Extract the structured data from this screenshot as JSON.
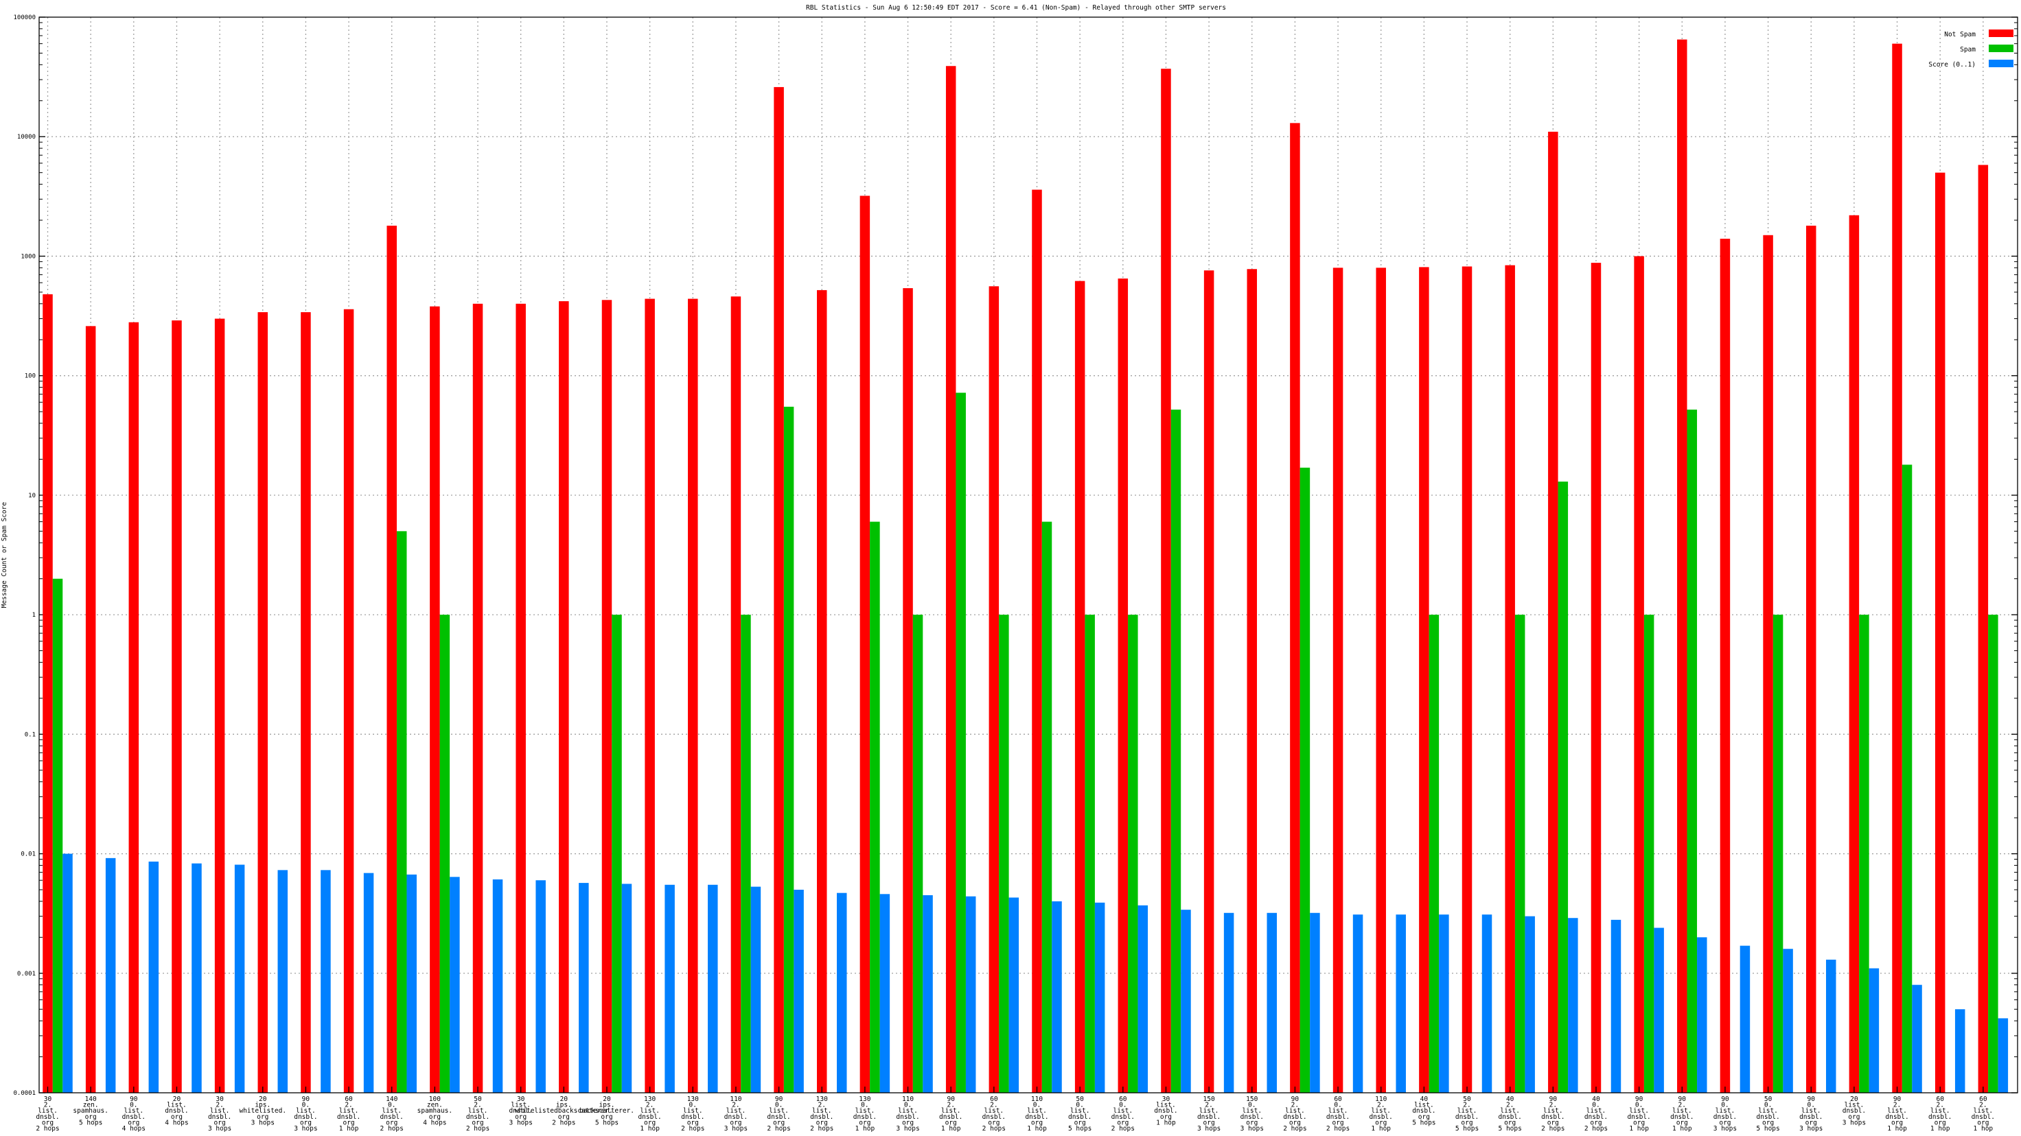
{
  "chart_data": {
    "type": "bar",
    "title": "RBL Statistics - Sun Aug  6 12:50:49 EDT 2017 - Score = 6.41 (Non-Spam) - Relayed through other SMTP servers",
    "ylabel": "Message Count or Spam Score",
    "xlabel": "",
    "yscale": "log",
    "ylim": [
      0.0001,
      100000
    ],
    "y_ticks": [
      "0.0001",
      "0.001",
      "0.01",
      "0.1",
      "1",
      "10",
      "100",
      "1000",
      "10000",
      "100000"
    ],
    "grid": true,
    "legend_position": "top-right",
    "categories": [
      [
        "30",
        "2.",
        "list.",
        "dnsbl.",
        "org",
        "2 hops"
      ],
      [
        "140",
        "zen.",
        "spamhaus.",
        "org",
        "5 hops"
      ],
      [
        "90",
        "0.",
        "list.",
        "dnsbl.",
        "org",
        "4 hops"
      ],
      [
        "20",
        "list.",
        "dnsbl.",
        "org",
        "4 hops"
      ],
      [
        "30",
        "2.",
        "list.",
        "dnsbl.",
        "org",
        "3 hops"
      ],
      [
        "20",
        "ips.",
        "whitelisted.",
        "org",
        "3 hops"
      ],
      [
        "90",
        "0.",
        "list.",
        "dnsbl.",
        "org",
        "3 hops"
      ],
      [
        "60",
        "2.",
        "list.",
        "dnsbl.",
        "org",
        "1 hop"
      ],
      [
        "140",
        "0.",
        "list.",
        "dnsbl.",
        "org",
        "2 hops"
      ],
      [
        "100",
        "zen.",
        "spamhaus.",
        "org",
        "4 hops"
      ],
      [
        "50",
        "2.",
        "list.",
        "dnsbl.",
        "org",
        "2 hops"
      ],
      [
        "30",
        "list.",
        "dnsbl.",
        "org",
        "3 hops"
      ],
      [
        "20",
        "ips.",
        "whitelistedbackscatterer.",
        "org",
        "2 hops"
      ],
      [
        "20",
        "ips.",
        "backscatterer.",
        "org",
        "5 hops"
      ],
      [
        "130",
        "2.",
        "list.",
        "dnsbl.",
        "org",
        "1 hop"
      ],
      [
        "130",
        "0.",
        "list.",
        "dnsbl.",
        "org",
        "2 hops"
      ],
      [
        "110",
        "2.",
        "list.",
        "dnsbl.",
        "org",
        "3 hops"
      ],
      [
        "90",
        "0.",
        "list.",
        "dnsbl.",
        "org",
        "2 hops"
      ],
      [
        "130",
        "2.",
        "list.",
        "dnsbl.",
        "org",
        "2 hops"
      ],
      [
        "130",
        "0.",
        "list.",
        "dnsbl.",
        "org",
        "1 hop"
      ],
      [
        "110",
        "0.",
        "list.",
        "dnsbl.",
        "org",
        "3 hops"
      ],
      [
        "90",
        "2.",
        "list.",
        "dnsbl.",
        "org",
        "1 hop"
      ],
      [
        "60",
        "2.",
        "list.",
        "dnsbl.",
        "org",
        "2 hops"
      ],
      [
        "110",
        "0.",
        "list.",
        "dnsbl.",
        "org",
        "1 hop"
      ],
      [
        "50",
        "0.",
        "list.",
        "dnsbl.",
        "org",
        "5 hops"
      ],
      [
        "60",
        "0.",
        "list.",
        "dnsbl.",
        "org",
        "2 hops"
      ],
      [
        "30",
        "list.",
        "dnsbl.",
        "org",
        "1 hop"
      ],
      [
        "150",
        "2.",
        "list.",
        "dnsbl.",
        "org",
        "3 hops"
      ],
      [
        "150",
        "0.",
        "list.",
        "dnsbl.",
        "org",
        "3 hops"
      ],
      [
        "90",
        "2.",
        "list.",
        "dnsbl.",
        "org",
        "2 hops"
      ],
      [
        "60",
        "0.",
        "list.",
        "dnsbl.",
        "org",
        "2 hops"
      ],
      [
        "110",
        "2.",
        "list.",
        "dnsbl.",
        "org",
        "1 hop"
      ],
      [
        "40",
        "list.",
        "dnsbl.",
        "org",
        "5 hops"
      ],
      [
        "50",
        "2.",
        "list.",
        "dnsbl.",
        "org",
        "5 hops"
      ],
      [
        "40",
        "2.",
        "list.",
        "dnsbl.",
        "org",
        "5 hops"
      ],
      [
        "90",
        "2.",
        "list.",
        "dnsbl.",
        "org",
        "2 hops"
      ],
      [
        "40",
        "0.",
        "list.",
        "dnsbl.",
        "org",
        "2 hops"
      ],
      [
        "90",
        "0.",
        "list.",
        "dnsbl.",
        "org",
        "1 hop"
      ],
      [
        "90",
        "2.",
        "list.",
        "dnsbl.",
        "org",
        "1 hop"
      ],
      [
        "90",
        "0.",
        "list.",
        "dnsbl.",
        "org",
        "3 hops"
      ],
      [
        "50",
        "0.",
        "list.",
        "dnsbl.",
        "org",
        "5 hops"
      ],
      [
        "90",
        "0.",
        "list.",
        "dnsbl.",
        "org",
        "3 hops"
      ],
      [
        "20",
        "list.",
        "dnsbl.",
        "org",
        "3 hops"
      ],
      [
        "90",
        "2.",
        "list.",
        "dnsbl.",
        "org",
        "1 hop"
      ],
      [
        "60",
        "2.",
        "list.",
        "dnsbl.",
        "org",
        "1 hop"
      ],
      [
        "60",
        "2.",
        "list.",
        "dnsbl.",
        "org",
        "1 hop"
      ]
    ],
    "series": [
      {
        "name": "Not Spam",
        "color": "#ff0000",
        "values": [
          480,
          260,
          280,
          290,
          300,
          340,
          340,
          360,
          1800,
          380,
          400,
          400,
          420,
          430,
          440,
          440,
          460,
          26000,
          520,
          3200,
          540,
          39000,
          560,
          3600,
          620,
          650,
          37000,
          760,
          780,
          13000,
          800,
          800,
          810,
          820,
          840,
          11000,
          880,
          1000,
          65000,
          1400,
          1500,
          1800,
          2200,
          60000,
          5000,
          5800
        ]
      },
      {
        "name": "Spam",
        "color": "#00c000",
        "values": [
          2,
          null,
          null,
          null,
          null,
          null,
          null,
          null,
          5,
          1,
          null,
          null,
          null,
          1,
          null,
          null,
          1,
          55,
          null,
          6,
          1,
          72,
          1,
          6,
          1,
          1,
          52,
          null,
          null,
          17,
          null,
          null,
          1,
          null,
          1,
          13,
          null,
          1,
          52,
          null,
          1,
          null,
          1,
          18,
          null,
          1
        ]
      },
      {
        "name": "Score (0..1)",
        "color": "#0080ff",
        "values": [
          0.01,
          0.0092,
          0.0086,
          0.0083,
          0.0081,
          0.0073,
          0.0073,
          0.0069,
          0.0067,
          0.0064,
          0.0061,
          0.006,
          0.0057,
          0.0056,
          0.0055,
          0.0055,
          0.0053,
          0.005,
          0.0047,
          0.0046,
          0.0045,
          0.0044,
          0.0043,
          0.004,
          0.0039,
          0.0037,
          0.0034,
          0.0032,
          0.0032,
          0.0032,
          0.0031,
          0.0031,
          0.0031,
          0.0031,
          0.003,
          0.0029,
          0.0028,
          0.0024,
          0.002,
          0.0017,
          0.0016,
          0.0013,
          0.0011,
          0.0008,
          0.0005,
          0.00042
        ]
      }
    ]
  }
}
